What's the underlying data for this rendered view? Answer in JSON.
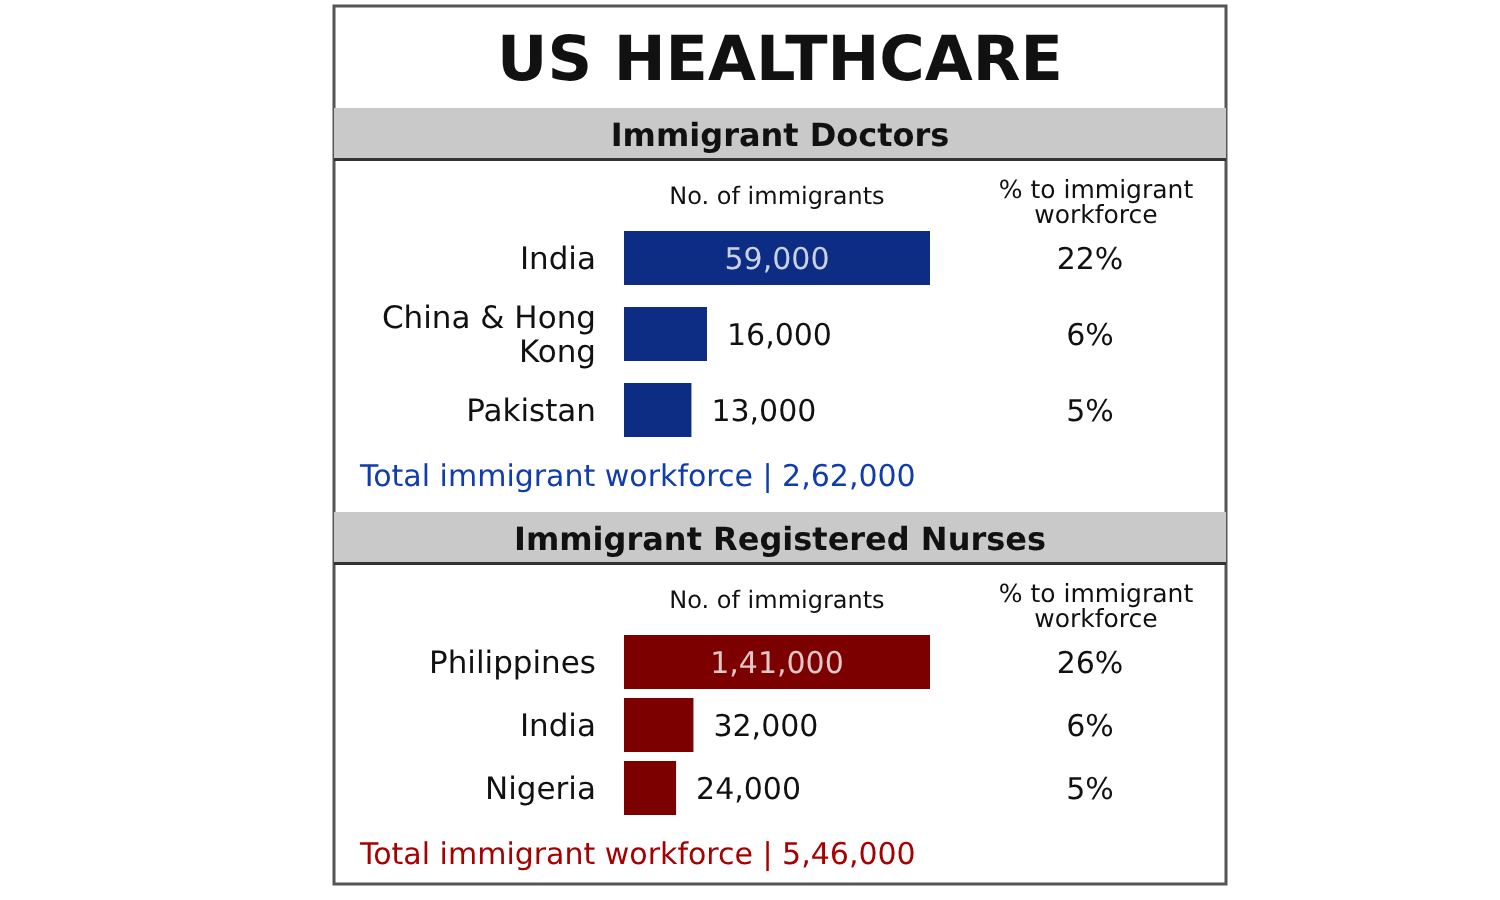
{
  "chart_data": [
    {
      "type": "bar",
      "orientation": "horizontal",
      "title": "US HEALTHCARE",
      "subtitle": "Immigrant Doctors",
      "xlabel": "No. of immigrants",
      "y2label": "% to immigrant workforce",
      "categories": [
        "India",
        "China & Hong Kong",
        "Pakistan"
      ],
      "values": [
        59000,
        16000,
        13000
      ],
      "value_labels": [
        "59,000",
        "16,000",
        "13,000"
      ],
      "color": "#0c2d83",
      "annotations": [
        "22%",
        "6%",
        "5%",
        "Total immigrant workforce | 2,62,000"
      ]
    },
    {
      "type": "bar",
      "orientation": "horizontal",
      "title": "Immigrant Registered Nurses",
      "xlabel": "No. of immigrants",
      "y2label": "% to immigrant workforce",
      "categories": [
        "Philippines",
        "India",
        "Nigeria"
      ],
      "values": [
        141000,
        32000,
        24000
      ],
      "value_labels": [
        "1,41,000",
        "32,000",
        "24,000"
      ],
      "color": "#7d0000",
      "annotations": [
        "26%",
        "6%",
        "5%",
        "Total immigrant workforce | 5,46,000"
      ]
    }
  ]
}
